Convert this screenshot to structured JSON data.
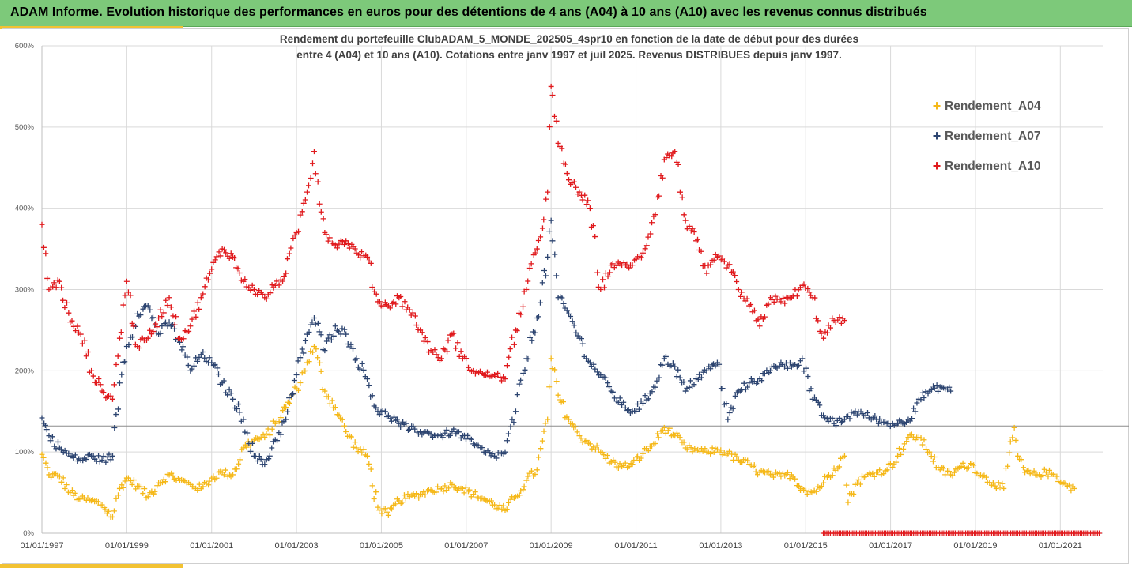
{
  "header": {
    "title": "ADAM Informe. Evolution historique des performances en euros pour des détentions de 4 ans (A04) à 10 ans (A10) avec les revenus connus distribués"
  },
  "colors": {
    "A04": "#f5b818",
    "A07": "#2c4470",
    "A10": "#e0191c",
    "header_bg": "#7dc97a",
    "accent": "#f2c232"
  },
  "chart_data": {
    "type": "scatter",
    "title": "Rendement du portefeuille ClubADAM_5_MONDE_202505_4spr10  en fonction de la date de début pour des durées",
    "subtitle": "entre 4 (A04) et 10 ans (A10). Cotations entre janv 1997 et juil 2025. Revenus DISTRIBUES depuis janv 1997.",
    "xlabel": "",
    "ylabel": "",
    "xlim": [
      "1997-01-01",
      "2022-01-01"
    ],
    "ylim": [
      0,
      600
    ],
    "yticks": [
      0,
      100,
      200,
      300,
      400,
      500,
      600
    ],
    "ytick_labels": [
      "0%",
      "100%",
      "200%",
      "300%",
      "400%",
      "500%",
      "600%"
    ],
    "xticks": [
      "1997-01-01",
      "1999-01-01",
      "2001-01-01",
      "2003-01-01",
      "2005-01-01",
      "2007-01-01",
      "2009-01-01",
      "2011-01-01",
      "2013-01-01",
      "2015-01-01",
      "2017-01-01",
      "2019-01-01",
      "2021-01-01"
    ],
    "xtick_labels": [
      "01/01/1997",
      "01/01/1999",
      "01/01/2001",
      "01/01/2003",
      "01/01/2005",
      "01/01/2007",
      "01/01/2009",
      "01/01/2011",
      "01/01/2013",
      "01/01/2015",
      "01/01/2017",
      "01/01/2019",
      "01/01/2021"
    ],
    "grid": "vertical and horizontal",
    "reference_line_y": 132,
    "legend_position": "right",
    "series": [
      {
        "name": "Rendement_A04",
        "color": "#f5b818",
        "marker": "+",
        "points": [
          [
            "1997-01",
            97
          ],
          [
            "1997-03",
            72
          ],
          [
            "1997-06",
            70
          ],
          [
            "1997-09",
            50
          ],
          [
            "1997-12",
            42
          ],
          [
            "1998-03",
            40
          ],
          [
            "1998-06",
            35
          ],
          [
            "1998-09",
            20
          ],
          [
            "1998-11",
            55
          ],
          [
            "1999-01",
            68
          ],
          [
            "1999-04",
            58
          ],
          [
            "1999-07",
            45
          ],
          [
            "1999-10",
            62
          ],
          [
            "2000-01",
            72
          ],
          [
            "2000-04",
            65
          ],
          [
            "2000-07",
            60
          ],
          [
            "2000-10",
            55
          ],
          [
            "2001-01",
            68
          ],
          [
            "2001-04",
            75
          ],
          [
            "2001-07",
            72
          ],
          [
            "2001-10",
            105
          ],
          [
            "2002-01",
            115
          ],
          [
            "2002-04",
            118
          ],
          [
            "2002-07",
            135
          ],
          [
            "2002-10",
            155
          ],
          [
            "2003-01",
            178
          ],
          [
            "2003-04",
            210
          ],
          [
            "2003-06",
            230
          ],
          [
            "2003-09",
            175
          ],
          [
            "2003-12",
            155
          ],
          [
            "2004-03",
            125
          ],
          [
            "2004-06",
            105
          ],
          [
            "2004-09",
            95
          ],
          [
            "2004-12",
            32
          ],
          [
            "2005-03",
            22
          ],
          [
            "2005-06",
            40
          ],
          [
            "2005-09",
            45
          ],
          [
            "2005-12",
            48
          ],
          [
            "2006-03",
            53
          ],
          [
            "2006-06",
            55
          ],
          [
            "2006-09",
            60
          ],
          [
            "2006-12",
            55
          ],
          [
            "2007-03",
            48
          ],
          [
            "2007-06",
            42
          ],
          [
            "2007-09",
            35
          ],
          [
            "2007-12",
            28
          ],
          [
            "2008-03",
            45
          ],
          [
            "2008-06",
            65
          ],
          [
            "2008-09",
            78
          ],
          [
            "2008-12",
            140
          ],
          [
            "2009-01",
            215
          ],
          [
            "2009-03",
            170
          ],
          [
            "2009-06",
            140
          ],
          [
            "2009-09",
            120
          ],
          [
            "2009-12",
            110
          ],
          [
            "2010-03",
            100
          ],
          [
            "2010-06",
            88
          ],
          [
            "2010-09",
            82
          ],
          [
            "2010-12",
            85
          ],
          [
            "2011-03",
            98
          ],
          [
            "2011-06",
            110
          ],
          [
            "2011-09",
            130
          ],
          [
            "2011-12",
            120
          ],
          [
            "2012-03",
            105
          ],
          [
            "2012-06",
            102
          ],
          [
            "2012-09",
            100
          ],
          [
            "2012-12",
            103
          ],
          [
            "2013-03",
            98
          ],
          [
            "2013-06",
            90
          ],
          [
            "2013-09",
            85
          ],
          [
            "2013-12",
            75
          ],
          [
            "2014-03",
            72
          ],
          [
            "2014-06",
            70
          ],
          [
            "2014-09",
            72
          ],
          [
            "2014-12",
            55
          ],
          [
            "2015-03",
            50
          ],
          [
            "2015-06",
            62
          ],
          [
            "2015-09",
            80
          ],
          [
            "2015-12",
            95
          ],
          [
            "2016-01",
            38
          ],
          [
            "2016-03",
            60
          ],
          [
            "2016-06",
            70
          ],
          [
            "2016-09",
            75
          ],
          [
            "2016-12",
            78
          ],
          [
            "2017-03",
            95
          ],
          [
            "2017-06",
            118
          ],
          [
            "2017-09",
            118
          ],
          [
            "2017-12",
            100
          ],
          [
            "2018-03",
            78
          ],
          [
            "2018-06",
            72
          ],
          [
            "2018-09",
            82
          ],
          [
            "2018-12",
            85
          ],
          [
            "2019-03",
            70
          ],
          [
            "2019-06",
            62
          ],
          [
            "2019-09",
            55
          ],
          [
            "2019-12",
            130
          ],
          [
            "2020-01",
            95
          ],
          [
            "2020-03",
            75
          ],
          [
            "2020-06",
            72
          ],
          [
            "2020-09",
            75
          ],
          [
            "2020-12",
            70
          ],
          [
            "2021-03",
            58
          ],
          [
            "2021-05",
            55
          ]
        ]
      },
      {
        "name": "Rendement_A07",
        "color": "#2c4470",
        "marker": "+",
        "points": [
          [
            "1997-01",
            142
          ],
          [
            "1997-03",
            120
          ],
          [
            "1997-06",
            105
          ],
          [
            "1997-09",
            95
          ],
          [
            "1997-12",
            90
          ],
          [
            "1998-03",
            95
          ],
          [
            "1998-06",
            90
          ],
          [
            "1998-09",
            95
          ],
          [
            "1998-11",
            185
          ],
          [
            "1999-01",
            230
          ],
          [
            "1999-04",
            270
          ],
          [
            "1999-07",
            280
          ],
          [
            "1999-10",
            245
          ],
          [
            "2000-01",
            260
          ],
          [
            "2000-04",
            235
          ],
          [
            "2000-07",
            200
          ],
          [
            "2000-10",
            220
          ],
          [
            "2001-01",
            210
          ],
          [
            "2001-04",
            185
          ],
          [
            "2001-07",
            165
          ],
          [
            "2001-10",
            140
          ],
          [
            "2002-01",
            95
          ],
          [
            "2002-04",
            85
          ],
          [
            "2002-07",
            115
          ],
          [
            "2002-10",
            140
          ],
          [
            "2003-01",
            195
          ],
          [
            "2003-04",
            245
          ],
          [
            "2003-06",
            265
          ],
          [
            "2003-09",
            225
          ],
          [
            "2003-12",
            255
          ],
          [
            "2004-03",
            245
          ],
          [
            "2004-06",
            215
          ],
          [
            "2004-09",
            190
          ],
          [
            "2004-12",
            150
          ],
          [
            "2005-03",
            145
          ],
          [
            "2005-06",
            135
          ],
          [
            "2005-09",
            128
          ],
          [
            "2005-12",
            125
          ],
          [
            "2006-03",
            122
          ],
          [
            "2006-06",
            120
          ],
          [
            "2006-09",
            125
          ],
          [
            "2006-12",
            120
          ],
          [
            "2007-03",
            110
          ],
          [
            "2007-06",
            100
          ],
          [
            "2007-09",
            95
          ],
          [
            "2007-12",
            100
          ],
          [
            "2008-03",
            150
          ],
          [
            "2008-06",
            215
          ],
          [
            "2008-09",
            265
          ],
          [
            "2008-12",
            340
          ],
          [
            "2009-01",
            385
          ],
          [
            "2009-03",
            290
          ],
          [
            "2009-06",
            270
          ],
          [
            "2009-09",
            240
          ],
          [
            "2009-12",
            210
          ],
          [
            "2010-03",
            195
          ],
          [
            "2010-06",
            175
          ],
          [
            "2010-09",
            158
          ],
          [
            "2010-12",
            150
          ],
          [
            "2011-03",
            160
          ],
          [
            "2011-06",
            180
          ],
          [
            "2011-09",
            215
          ],
          [
            "2011-12",
            205
          ],
          [
            "2012-03",
            175
          ],
          [
            "2012-06",
            190
          ],
          [
            "2012-09",
            200
          ],
          [
            "2012-12",
            210
          ],
          [
            "2013-03",
            140
          ],
          [
            "2013-06",
            175
          ],
          [
            "2013-09",
            185
          ],
          [
            "2013-12",
            190
          ],
          [
            "2014-03",
            200
          ],
          [
            "2014-06",
            210
          ],
          [
            "2014-09",
            205
          ],
          [
            "2014-12",
            215
          ],
          [
            "2015-03",
            165
          ],
          [
            "2015-06",
            145
          ],
          [
            "2015-09",
            135
          ],
          [
            "2015-12",
            140
          ],
          [
            "2016-03",
            150
          ],
          [
            "2016-06",
            145
          ],
          [
            "2016-09",
            140
          ],
          [
            "2016-12",
            135
          ],
          [
            "2017-03",
            135
          ],
          [
            "2017-06",
            140
          ],
          [
            "2017-09",
            165
          ],
          [
            "2017-12",
            175
          ],
          [
            "2018-03",
            180
          ],
          [
            "2018-06",
            175
          ]
        ]
      },
      {
        "name": "Rendement_A10",
        "color": "#e0191c",
        "marker": "+",
        "points": [
          [
            "1997-01",
            380
          ],
          [
            "1997-03",
            300
          ],
          [
            "1997-06",
            310
          ],
          [
            "1997-09",
            260
          ],
          [
            "1997-12",
            245
          ],
          [
            "1998-03",
            200
          ],
          [
            "1998-06",
            175
          ],
          [
            "1998-09",
            165
          ],
          [
            "1998-11",
            240
          ],
          [
            "1999-01",
            310
          ],
          [
            "1999-04",
            230
          ],
          [
            "1999-07",
            240
          ],
          [
            "1999-10",
            265
          ],
          [
            "2000-01",
            290
          ],
          [
            "2000-04",
            240
          ],
          [
            "2000-07",
            255
          ],
          [
            "2000-10",
            290
          ],
          [
            "2001-01",
            325
          ],
          [
            "2001-04",
            350
          ],
          [
            "2001-07",
            340
          ],
          [
            "2001-10",
            310
          ],
          [
            "2002-01",
            300
          ],
          [
            "2002-04",
            290
          ],
          [
            "2002-07",
            305
          ],
          [
            "2002-10",
            320
          ],
          [
            "2003-01",
            370
          ],
          [
            "2003-04",
            420
          ],
          [
            "2003-06",
            470
          ],
          [
            "2003-09",
            370
          ],
          [
            "2003-12",
            355
          ],
          [
            "2004-03",
            360
          ],
          [
            "2004-06",
            345
          ],
          [
            "2004-09",
            340
          ],
          [
            "2004-12",
            285
          ],
          [
            "2005-03",
            280
          ],
          [
            "2005-06",
            290
          ],
          [
            "2005-09",
            275
          ],
          [
            "2005-12",
            250
          ],
          [
            "2006-03",
            225
          ],
          [
            "2006-06",
            215
          ],
          [
            "2006-09",
            245
          ],
          [
            "2006-12",
            215
          ],
          [
            "2007-03",
            200
          ],
          [
            "2007-06",
            195
          ],
          [
            "2007-09",
            195
          ],
          [
            "2007-12",
            190
          ],
          [
            "2008-03",
            250
          ],
          [
            "2008-06",
            300
          ],
          [
            "2008-09",
            350
          ],
          [
            "2008-12",
            420
          ],
          [
            "2009-01",
            550
          ],
          [
            "2009-03",
            480
          ],
          [
            "2009-06",
            435
          ],
          [
            "2009-09",
            420
          ],
          [
            "2009-12",
            400
          ],
          [
            "2010-03",
            300
          ],
          [
            "2010-06",
            330
          ],
          [
            "2010-09",
            330
          ],
          [
            "2010-12",
            330
          ],
          [
            "2011-03",
            345
          ],
          [
            "2011-06",
            390
          ],
          [
            "2011-09",
            460
          ],
          [
            "2011-12",
            470
          ],
          [
            "2012-03",
            385
          ],
          [
            "2012-06",
            360
          ],
          [
            "2012-09",
            320
          ],
          [
            "2012-12",
            340
          ],
          [
            "2013-03",
            330
          ],
          [
            "2013-06",
            300
          ],
          [
            "2013-09",
            280
          ],
          [
            "2013-12",
            255
          ],
          [
            "2014-03",
            290
          ],
          [
            "2014-06",
            285
          ],
          [
            "2014-09",
            290
          ],
          [
            "2014-12",
            305
          ],
          [
            "2015-03",
            290
          ],
          [
            "2015-06",
            240
          ],
          [
            "2015-09",
            262
          ],
          [
            "2015-12",
            262
          ]
        ]
      },
      {
        "name": "Rendement_A10 (zero)",
        "color": "#e0191c",
        "marker": "+",
        "points": [
          [
            "2015-06",
            0
          ],
          [
            "2021-12",
            0
          ]
        ]
      }
    ]
  }
}
